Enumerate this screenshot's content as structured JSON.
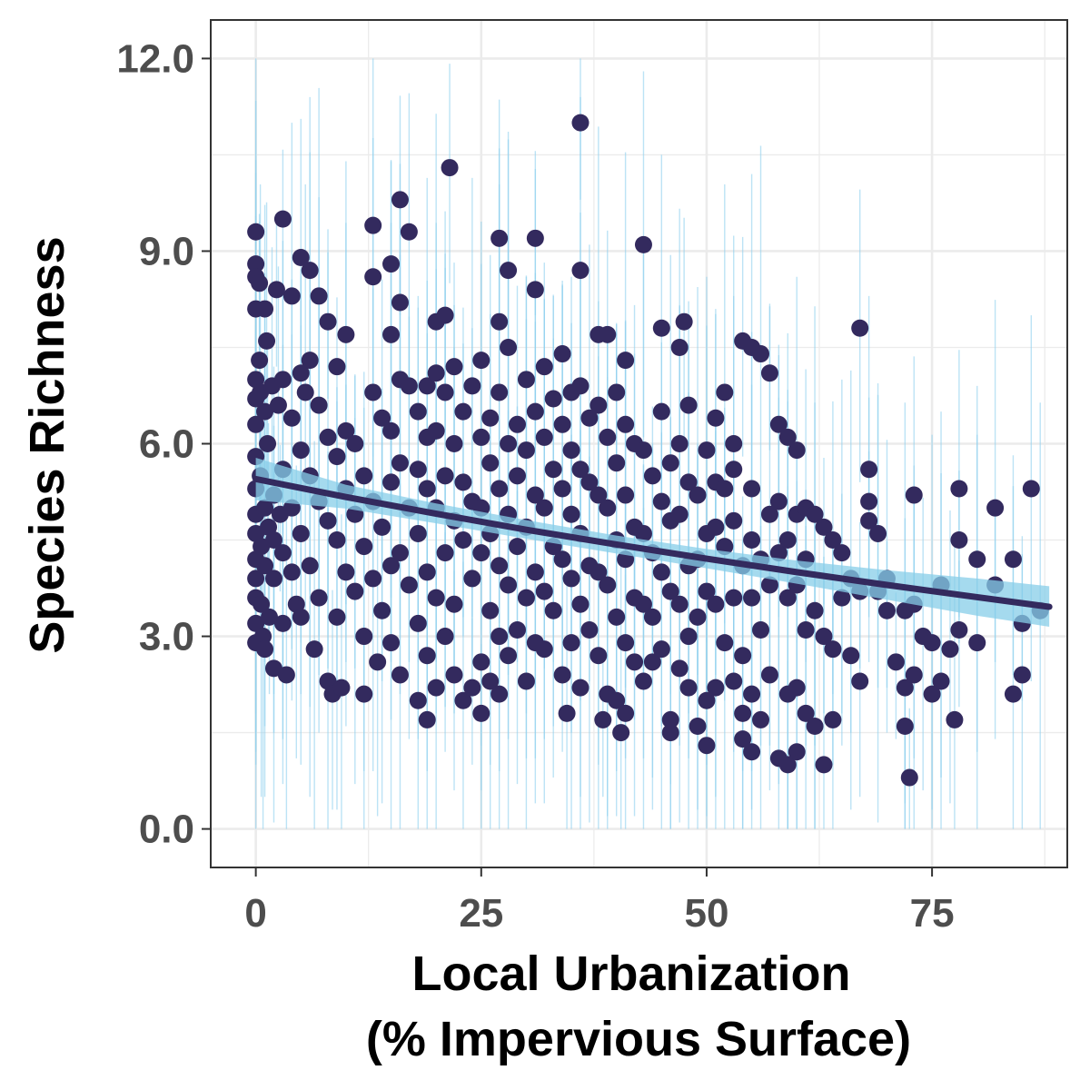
{
  "chart_data": {
    "type": "scatter",
    "xlabel_line1": "Local Urbanization",
    "xlabel_line2": "(% Impervious Surface)",
    "ylabel": "Species Richness",
    "xlim": [
      -5,
      90
    ],
    "ylim": [
      -0.6,
      12.6
    ],
    "x_ticks": [
      0,
      25,
      50,
      75
    ],
    "x_tick_labels": [
      "0",
      "25",
      "50",
      "75"
    ],
    "y_ticks": [
      0,
      3,
      6,
      9,
      12
    ],
    "y_tick_labels": [
      "0.0",
      "3.0",
      "6.0",
      "9.0",
      "12.0"
    ],
    "grid": true,
    "legend": "none",
    "colors": {
      "points": "#332a5e",
      "fit_line": "#332a5e",
      "ribbon": "#87cde8",
      "raw_segments": "#8fd0ef",
      "grid": "#ebebeb",
      "panel_border": "#333333"
    },
    "fit": {
      "x": [
        0,
        10,
        20,
        30,
        40,
        50,
        60,
        70,
        80,
        88
      ],
      "y": [
        5.45,
        5.17,
        4.91,
        4.66,
        4.43,
        4.21,
        4.0,
        3.8,
        3.61,
        3.46
      ],
      "lower": [
        5.12,
        4.99,
        4.76,
        4.52,
        4.29,
        4.06,
        3.82,
        3.57,
        3.32,
        3.15
      ],
      "upper": [
        5.78,
        5.36,
        5.07,
        4.81,
        4.57,
        4.36,
        4.18,
        4.03,
        3.9,
        3.78
      ]
    },
    "points": [
      [
        0,
        9.3
      ],
      [
        0,
        8.8
      ],
      [
        0,
        8.6
      ],
      [
        0,
        8.1
      ],
      [
        0,
        7.0
      ],
      [
        0,
        6.7
      ],
      [
        0,
        6.3
      ],
      [
        0,
        5.8
      ],
      [
        0,
        5.3
      ],
      [
        0,
        4.9
      ],
      [
        0,
        4.6
      ],
      [
        0,
        4.2
      ],
      [
        0,
        3.9
      ],
      [
        0,
        3.6
      ],
      [
        0,
        3.2
      ],
      [
        0,
        2.9
      ],
      [
        0.4,
        8.5
      ],
      [
        0.4,
        7.3
      ],
      [
        0.5,
        6.8
      ],
      [
        0.5,
        5.5
      ],
      [
        0.6,
        4.4
      ],
      [
        0.6,
        3.5
      ],
      [
        0.8,
        3.0
      ],
      [
        1,
        8.1
      ],
      [
        1,
        6.5
      ],
      [
        1,
        5.0
      ],
      [
        1,
        4.1
      ],
      [
        1,
        2.8
      ],
      [
        1.2,
        7.6
      ],
      [
        1.3,
        6.0
      ],
      [
        1.4,
        4.7
      ],
      [
        1.5,
        3.3
      ],
      [
        1.8,
        6.9
      ],
      [
        2,
        5.2
      ],
      [
        2,
        4.5
      ],
      [
        2,
        3.9
      ],
      [
        2,
        2.5
      ],
      [
        2.3,
        8.4
      ],
      [
        2.5,
        6.6
      ],
      [
        2.7,
        4.9
      ],
      [
        3,
        9.5
      ],
      [
        3,
        7.0
      ],
      [
        3,
        5.6
      ],
      [
        3,
        4.3
      ],
      [
        3,
        3.2
      ],
      [
        3.4,
        2.4
      ],
      [
        4,
        8.3
      ],
      [
        4,
        6.4
      ],
      [
        4,
        5.0
      ],
      [
        4,
        4.0
      ],
      [
        4.5,
        3.5
      ],
      [
        5,
        8.9
      ],
      [
        5,
        7.1
      ],
      [
        5,
        5.9
      ],
      [
        5,
        4.6
      ],
      [
        5,
        3.3
      ],
      [
        5.5,
        6.8
      ],
      [
        6,
        8.7
      ],
      [
        6,
        7.3
      ],
      [
        6,
        5.5
      ],
      [
        6,
        4.1
      ],
      [
        6.5,
        2.8
      ],
      [
        7,
        8.3
      ],
      [
        7,
        6.6
      ],
      [
        7,
        5.1
      ],
      [
        7,
        3.6
      ],
      [
        8,
        7.9
      ],
      [
        8,
        6.1
      ],
      [
        8,
        4.8
      ],
      [
        8,
        2.3
      ],
      [
        8.5,
        2.1
      ],
      [
        9,
        7.2
      ],
      [
        9,
        5.8
      ],
      [
        9,
        4.5
      ],
      [
        9,
        3.3
      ],
      [
        9.5,
        2.2
      ],
      [
        10,
        7.7
      ],
      [
        10,
        6.2
      ],
      [
        10,
        5.3
      ],
      [
        10,
        4.0
      ],
      [
        11,
        6.0
      ],
      [
        11,
        4.9
      ],
      [
        11,
        3.7
      ],
      [
        12,
        5.5
      ],
      [
        12,
        4.4
      ],
      [
        12,
        3.0
      ],
      [
        12,
        2.1
      ],
      [
        13,
        9.4
      ],
      [
        13,
        8.6
      ],
      [
        13,
        6.8
      ],
      [
        13,
        5.1
      ],
      [
        13,
        3.9
      ],
      [
        13.5,
        2.6
      ],
      [
        14,
        6.4
      ],
      [
        14,
        4.7
      ],
      [
        14,
        3.4
      ],
      [
        15,
        8.8
      ],
      [
        15,
        7.7
      ],
      [
        15,
        6.2
      ],
      [
        15,
        5.4
      ],
      [
        15,
        4.1
      ],
      [
        15,
        2.9
      ],
      [
        16,
        9.8
      ],
      [
        16,
        8.2
      ],
      [
        16,
        7.0
      ],
      [
        16,
        5.7
      ],
      [
        16,
        4.3
      ],
      [
        16,
        2.4
      ],
      [
        17,
        9.3
      ],
      [
        17,
        6.9
      ],
      [
        17,
        5.0
      ],
      [
        17,
        3.8
      ],
      [
        18,
        6.5
      ],
      [
        18,
        5.6
      ],
      [
        18,
        4.6
      ],
      [
        18,
        3.2
      ],
      [
        18,
        2.0
      ],
      [
        19,
        6.9
      ],
      [
        19,
        6.1
      ],
      [
        19,
        5.3
      ],
      [
        19,
        4.0
      ],
      [
        19,
        2.7
      ],
      [
        19,
        1.7
      ],
      [
        20,
        7.9
      ],
      [
        20,
        7.1
      ],
      [
        20,
        6.2
      ],
      [
        20,
        5.0
      ],
      [
        20,
        3.6
      ],
      [
        20,
        2.2
      ],
      [
        21,
        8.0
      ],
      [
        21,
        6.8
      ],
      [
        21,
        5.5
      ],
      [
        21,
        4.3
      ],
      [
        21,
        3.0
      ],
      [
        21.5,
        10.3
      ],
      [
        22,
        7.2
      ],
      [
        22,
        6.0
      ],
      [
        22,
        4.8
      ],
      [
        22,
        3.5
      ],
      [
        22,
        2.4
      ],
      [
        23,
        6.5
      ],
      [
        23,
        5.4
      ],
      [
        23,
        4.5
      ],
      [
        23,
        2.0
      ],
      [
        24,
        6.9
      ],
      [
        24,
        5.1
      ],
      [
        24,
        3.9
      ],
      [
        24,
        2.2
      ],
      [
        25,
        7.3
      ],
      [
        25,
        6.1
      ],
      [
        25,
        5.0
      ],
      [
        25,
        4.3
      ],
      [
        25,
        2.6
      ],
      [
        25,
        1.8
      ],
      [
        26,
        6.4
      ],
      [
        26,
        5.7
      ],
      [
        26,
        4.6
      ],
      [
        26,
        3.4
      ],
      [
        26,
        2.3
      ],
      [
        27,
        9.2
      ],
      [
        27,
        7.9
      ],
      [
        27,
        6.8
      ],
      [
        27,
        5.3
      ],
      [
        27,
        4.1
      ],
      [
        27,
        3.0
      ],
      [
        27,
        2.1
      ],
      [
        28,
        8.7
      ],
      [
        28,
        7.5
      ],
      [
        28,
        6.0
      ],
      [
        28,
        4.9
      ],
      [
        28,
        3.8
      ],
      [
        28,
        2.7
      ],
      [
        29,
        6.3
      ],
      [
        29,
        5.5
      ],
      [
        29,
        4.4
      ],
      [
        29,
        3.1
      ],
      [
        30,
        7.0
      ],
      [
        30,
        5.9
      ],
      [
        30,
        4.7
      ],
      [
        30,
        3.6
      ],
      [
        30,
        2.3
      ],
      [
        31,
        9.2
      ],
      [
        31,
        8.4
      ],
      [
        31,
        6.5
      ],
      [
        31,
        5.2
      ],
      [
        31,
        4.0
      ],
      [
        31,
        2.9
      ],
      [
        32,
        7.2
      ],
      [
        32,
        6.1
      ],
      [
        32,
        5.0
      ],
      [
        32,
        3.7
      ],
      [
        32,
        2.8
      ],
      [
        33,
        6.7
      ],
      [
        33,
        5.6
      ],
      [
        33,
        4.4
      ],
      [
        33,
        3.4
      ],
      [
        34,
        7.4
      ],
      [
        34,
        6.3
      ],
      [
        34,
        5.3
      ],
      [
        34,
        4.2
      ],
      [
        34,
        2.4
      ],
      [
        34.5,
        1.8
      ],
      [
        35,
        6.8
      ],
      [
        35,
        5.9
      ],
      [
        35,
        4.9
      ],
      [
        35,
        3.9
      ],
      [
        35,
        2.9
      ],
      [
        36,
        11.0
      ],
      [
        36,
        8.7
      ],
      [
        36,
        6.9
      ],
      [
        36,
        5.6
      ],
      [
        36,
        4.6
      ],
      [
        36,
        3.5
      ],
      [
        36,
        2.2
      ],
      [
        37,
        6.4
      ],
      [
        37,
        5.4
      ],
      [
        37,
        4.1
      ],
      [
        37,
        3.1
      ],
      [
        38,
        7.7
      ],
      [
        38,
        6.6
      ],
      [
        38,
        5.2
      ],
      [
        38,
        4.0
      ],
      [
        38,
        2.7
      ],
      [
        38.5,
        1.7
      ],
      [
        39,
        7.7
      ],
      [
        39,
        6.1
      ],
      [
        39,
        5.0
      ],
      [
        39,
        3.8
      ],
      [
        39,
        2.1
      ],
      [
        40,
        6.8
      ],
      [
        40,
        5.7
      ],
      [
        40,
        4.5
      ],
      [
        40,
        3.3
      ],
      [
        40,
        2.0
      ],
      [
        40.5,
        1.5
      ],
      [
        41,
        7.3
      ],
      [
        41,
        6.3
      ],
      [
        41,
        5.2
      ],
      [
        41,
        4.2
      ],
      [
        41,
        2.9
      ],
      [
        41,
        1.8
      ],
      [
        42,
        6.0
      ],
      [
        42,
        4.7
      ],
      [
        42,
        3.6
      ],
      [
        42,
        2.6
      ],
      [
        43,
        9.1
      ],
      [
        43,
        5.9
      ],
      [
        43,
        4.6
      ],
      [
        43,
        3.5
      ],
      [
        43,
        2.3
      ],
      [
        44,
        5.5
      ],
      [
        44,
        4.3
      ],
      [
        44,
        3.3
      ],
      [
        44,
        2.6
      ],
      [
        45,
        7.8
      ],
      [
        45,
        6.5
      ],
      [
        45,
        5.1
      ],
      [
        45,
        4.0
      ],
      [
        45,
        2.8
      ],
      [
        46,
        5.7
      ],
      [
        46,
        4.8
      ],
      [
        46,
        3.7
      ],
      [
        46,
        1.7
      ],
      [
        46,
        1.5
      ],
      [
        47,
        7.5
      ],
      [
        47,
        6.0
      ],
      [
        47,
        4.9
      ],
      [
        47,
        3.5
      ],
      [
        47,
        2.5
      ],
      [
        47.5,
        7.9
      ],
      [
        48,
        6.6
      ],
      [
        48,
        5.4
      ],
      [
        48,
        4.1
      ],
      [
        48,
        3.0
      ],
      [
        48,
        2.2
      ],
      [
        49,
        5.2
      ],
      [
        49,
        4.2
      ],
      [
        49,
        3.3
      ],
      [
        49,
        1.6
      ],
      [
        50,
        5.9
      ],
      [
        50,
        4.6
      ],
      [
        50,
        3.7
      ],
      [
        50,
        2.0
      ],
      [
        50,
        1.3
      ],
      [
        51,
        6.4
      ],
      [
        51,
        5.4
      ],
      [
        51,
        4.7
      ],
      [
        51,
        3.5
      ],
      [
        51,
        2.2
      ],
      [
        52,
        6.8
      ],
      [
        52,
        5.3
      ],
      [
        52,
        4.4
      ],
      [
        52,
        2.9
      ],
      [
        53,
        6.0
      ],
      [
        53,
        5.6
      ],
      [
        53,
        4.8
      ],
      [
        53,
        3.6
      ],
      [
        53,
        2.3
      ],
      [
        54,
        7.6
      ],
      [
        54,
        4.1
      ],
      [
        54,
        2.7
      ],
      [
        54,
        1.8
      ],
      [
        54,
        1.4
      ],
      [
        55,
        7.5
      ],
      [
        55,
        5.3
      ],
      [
        55,
        4.5
      ],
      [
        55,
        3.6
      ],
      [
        55,
        2.1
      ],
      [
        55,
        1.2
      ],
      [
        56,
        7.4
      ],
      [
        56,
        4.2
      ],
      [
        56,
        3.1
      ],
      [
        56,
        1.7
      ],
      [
        57,
        7.1
      ],
      [
        57,
        4.9
      ],
      [
        57,
        3.8
      ],
      [
        57,
        2.4
      ],
      [
        58,
        6.3
      ],
      [
        58,
        5.1
      ],
      [
        58,
        4.3
      ],
      [
        58,
        1.1
      ],
      [
        59,
        6.1
      ],
      [
        59,
        4.5
      ],
      [
        59,
        3.6
      ],
      [
        59,
        2.1
      ],
      [
        59,
        1.0
      ],
      [
        60,
        5.9
      ],
      [
        60,
        4.9
      ],
      [
        60,
        3.8
      ],
      [
        60,
        2.2
      ],
      [
        60,
        1.2
      ],
      [
        61,
        5.0
      ],
      [
        61,
        4.2
      ],
      [
        61,
        3.1
      ],
      [
        61,
        1.8
      ],
      [
        62,
        4.9
      ],
      [
        62,
        3.4
      ],
      [
        62,
        1.6
      ],
      [
        63,
        4.7
      ],
      [
        63,
        3.0
      ],
      [
        63,
        1.0
      ],
      [
        64,
        4.5
      ],
      [
        64,
        2.8
      ],
      [
        64,
        1.7
      ],
      [
        65,
        4.3
      ],
      [
        65,
        3.6
      ],
      [
        66,
        3.9
      ],
      [
        66,
        2.7
      ],
      [
        67,
        7.8
      ],
      [
        67,
        3.7
      ],
      [
        67,
        2.3
      ],
      [
        68,
        5.6
      ],
      [
        68,
        5.1
      ],
      [
        68,
        4.8
      ],
      [
        69,
        4.6
      ],
      [
        69,
        3.7
      ],
      [
        70,
        3.9
      ],
      [
        70,
        3.4
      ],
      [
        71,
        2.6
      ],
      [
        72,
        3.4
      ],
      [
        72,
        2.2
      ],
      [
        72,
        1.6
      ],
      [
        72.5,
        0.8
      ],
      [
        73,
        5.2
      ],
      [
        73,
        3.5
      ],
      [
        73,
        2.4
      ],
      [
        74,
        3.0
      ],
      [
        75,
        2.9
      ],
      [
        75,
        2.1
      ],
      [
        76,
        3.8
      ],
      [
        76,
        2.3
      ],
      [
        77,
        2.8
      ],
      [
        77.5,
        1.7
      ],
      [
        78,
        5.3
      ],
      [
        78,
        4.5
      ],
      [
        78,
        3.1
      ],
      [
        80,
        4.2
      ],
      [
        80,
        2.9
      ],
      [
        82,
        5.0
      ],
      [
        82,
        3.8
      ],
      [
        84,
        4.2
      ],
      [
        84,
        2.1
      ],
      [
        85,
        3.2
      ],
      [
        85,
        2.4
      ],
      [
        86,
        5.3
      ],
      [
        87,
        3.4
      ]
    ]
  }
}
